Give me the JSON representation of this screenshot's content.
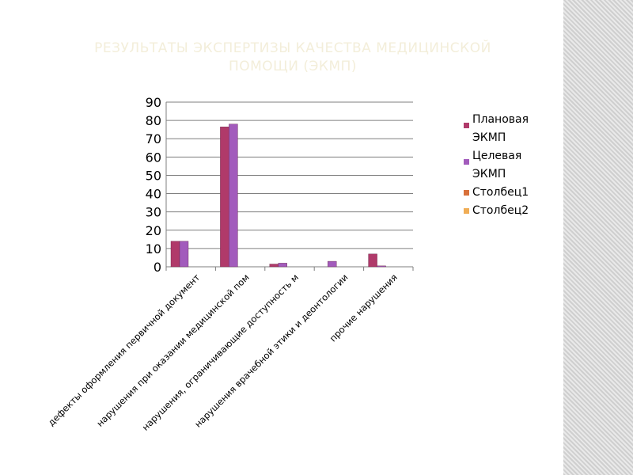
{
  "slide": {
    "title_line1": "РЕЗУЛЬТАТЫ ЭКСПЕРТИЗЫ КАЧЕСТВА МЕДИЦИНСКОЙ",
    "title_line2": "ПОМОЩИ (ЭКМП)"
  },
  "colors": {
    "title": "#f3eeda",
    "stripe_dark": "#cfcfcf",
    "stripe_light": "#e9e9e9",
    "gridline": "#7f7f7f"
  },
  "chart_data": {
    "type": "bar",
    "title": "",
    "xlabel": "",
    "ylabel": "",
    "ylim": [
      0,
      90
    ],
    "yticks": [
      0,
      10,
      20,
      30,
      40,
      50,
      60,
      70,
      80,
      90
    ],
    "grid": true,
    "legend_position": "right",
    "categories": [
      "дефекты оформления первичной документ",
      "нарушения при оказании медицинской пом",
      "нарушения, ограничивающие доступность м",
      "нарушения врачебной этики и деонтологии",
      "прочие нарушения"
    ],
    "series": [
      {
        "name_line1": "Плановая",
        "name_line2": "ЭКМП",
        "color": "#b03a6a",
        "values": [
          14,
          76.5,
          1.5,
          0,
          7
        ]
      },
      {
        "name_line1": "Целевая",
        "name_line2": "ЭКМП",
        "color": "#a25bbc",
        "values": [
          14,
          78,
          2,
          3,
          0.5
        ]
      },
      {
        "name_line1": "Столбец1",
        "name_line2": "",
        "color": "#d8703a",
        "values": [
          0,
          0,
          0,
          0,
          0
        ]
      },
      {
        "name_line1": "Столбец2",
        "name_line2": "",
        "color": "#f0ad55",
        "values": [
          0,
          0,
          0,
          0,
          0
        ]
      }
    ]
  }
}
